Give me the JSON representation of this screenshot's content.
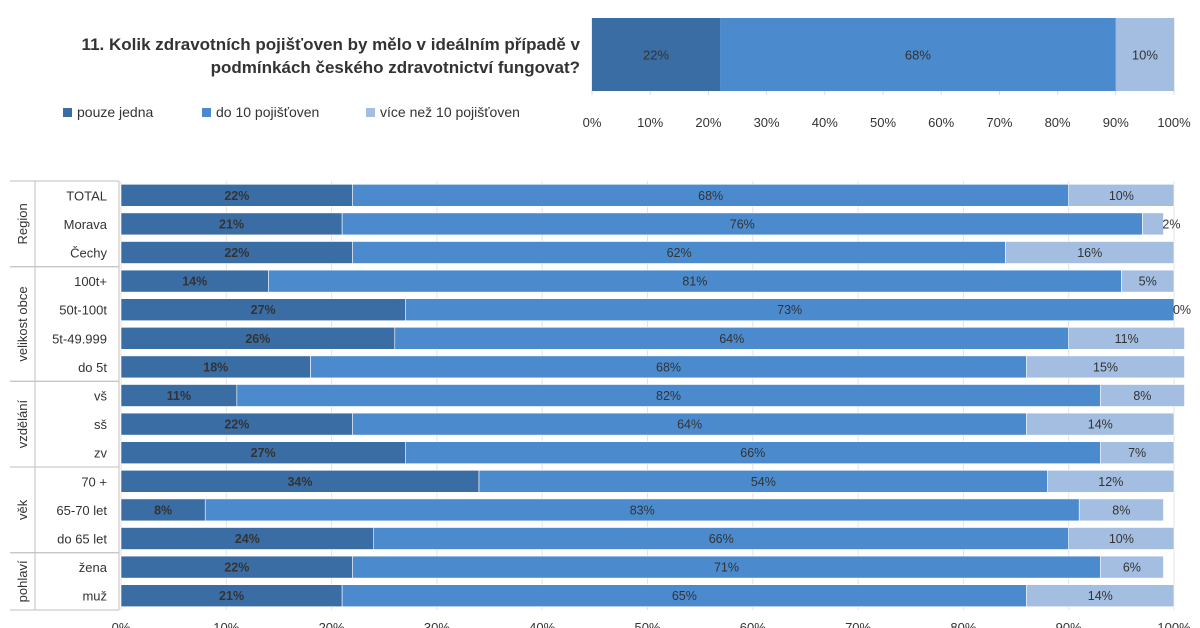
{
  "title": "11. Kolik zdravotních pojišťoven by mělo v ideálním případě v podmínkách českého zdravotnictví fungovat?",
  "legend": [
    {
      "label": "pouze jedna",
      "color": "#3a6da3"
    },
    {
      "label": "do 10 pojišťoven",
      "color": "#4a8acd"
    },
    {
      "label": "více než 10 pojišťoven",
      "color": "#a3bee1"
    }
  ],
  "chart_data": [
    {
      "type": "bar",
      "orientation": "horizontal",
      "stacked": "percent",
      "title": "TOTAL",
      "series": [
        {
          "name": "pouze jedna",
          "values": [
            22
          ]
        },
        {
          "name": "do 10 pojišťoven",
          "values": [
            68
          ]
        },
        {
          "name": "více než 10 pojišťoven",
          "values": [
            10
          ]
        }
      ],
      "xticks": [
        "0%",
        "10%",
        "20%",
        "30%",
        "40%",
        "50%",
        "60%",
        "70%",
        "80%",
        "90%",
        "100%"
      ],
      "xlim": [
        0,
        100
      ]
    },
    {
      "type": "bar",
      "orientation": "horizontal",
      "stacked": "percent",
      "groups": [
        {
          "name": "Region",
          "categories": [
            "TOTAL",
            "Morava",
            "Čechy"
          ]
        },
        {
          "name": "velikost obce",
          "categories": [
            "100t+",
            "50t-100t",
            "5t-49.999",
            "do 5t"
          ]
        },
        {
          "name": "vzdělání",
          "categories": [
            "vš",
            "sš",
            "zv"
          ]
        },
        {
          "name": "věk",
          "categories": [
            "70 +",
            "65-70 let",
            "do 65 let"
          ]
        },
        {
          "name": "pohlaví",
          "categories": [
            "žena",
            "muž"
          ]
        }
      ],
      "categories": [
        "TOTAL",
        "Morava",
        "Čechy",
        "100t+",
        "50t-100t",
        "5t-49.999",
        "do 5t",
        "vš",
        "sš",
        "zv",
        "70 +",
        "65-70 let",
        "do 65 let",
        "žena",
        "muž"
      ],
      "series": [
        {
          "name": "pouze jedna",
          "values": [
            22,
            21,
            22,
            14,
            27,
            26,
            18,
            11,
            22,
            27,
            34,
            8,
            24,
            22,
            21
          ]
        },
        {
          "name": "do 10 pojišťoven",
          "values": [
            68,
            76,
            62,
            81,
            73,
            64,
            68,
            82,
            64,
            66,
            54,
            83,
            66,
            71,
            65
          ]
        },
        {
          "name": "více než 10 pojišťoven",
          "values": [
            10,
            2,
            16,
            5,
            0,
            11,
            15,
            8,
            14,
            7,
            12,
            8,
            10,
            6,
            14
          ]
        }
      ],
      "xticks": [
        "0%",
        "10%",
        "20%",
        "30%",
        "40%",
        "50%",
        "60%",
        "70%",
        "80%",
        "90%",
        "100%"
      ],
      "xlim": [
        0,
        100
      ]
    }
  ]
}
